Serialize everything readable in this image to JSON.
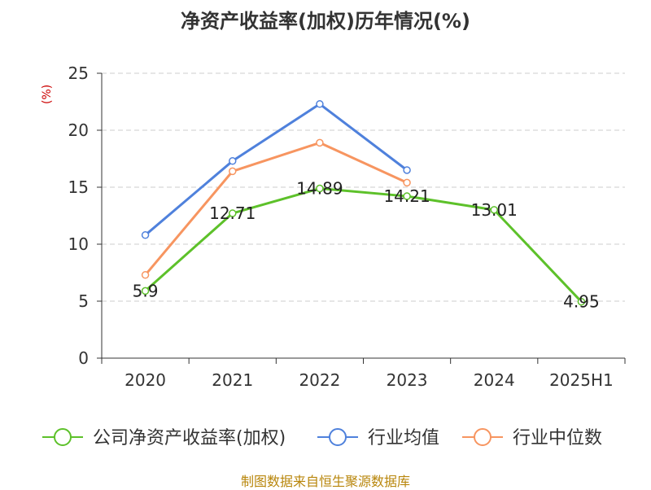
{
  "chart_data": {
    "type": "line",
    "title": "净资产收益率(加权)历年情况(%)",
    "ylabel": "(%)",
    "ylim": [
      0,
      25
    ],
    "yticks": [
      0,
      5,
      10,
      15,
      20,
      25
    ],
    "grid": true,
    "legend_placement": "bottom",
    "categories": [
      "2020",
      "2021",
      "2022",
      "2023",
      "2024",
      "2025H1"
    ],
    "series": [
      {
        "name": "公司净资产收益率(加权)",
        "color": "#5dc12a",
        "values": [
          5.9,
          12.71,
          14.89,
          14.21,
          13.01,
          4.95
        ],
        "data_labels": [
          "5.9",
          "12.71",
          "14.89",
          "14.21",
          "13.01",
          "4.95"
        ]
      },
      {
        "name": "行业均值",
        "color": "#4f81dc",
        "values": [
          10.8,
          17.3,
          22.3,
          16.5,
          null,
          null
        ]
      },
      {
        "name": "行业中位数",
        "color": "#f79560",
        "values": [
          7.3,
          16.4,
          18.9,
          15.4,
          null,
          null
        ]
      }
    ]
  },
  "source": "制图数据来自恒生聚源数据库"
}
